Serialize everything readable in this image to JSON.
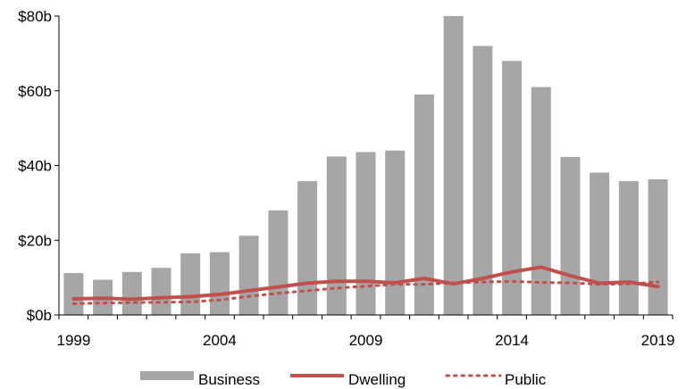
{
  "chart_data": {
    "type": "bar",
    "x": [
      1999,
      2000,
      2001,
      2002,
      2003,
      2004,
      2005,
      2006,
      2007,
      2008,
      2009,
      2010,
      2011,
      2012,
      2013,
      2014,
      2015,
      2016,
      2017,
      2018,
      2019
    ],
    "x_tick_labels": [
      "1999",
      "2004",
      "2009",
      "2014",
      "2019"
    ],
    "y_tick_labels": [
      "$0b",
      "$20b",
      "$40b",
      "$60b",
      "$80b"
    ],
    "ylim": [
      0,
      80
    ],
    "series": [
      {
        "name": "Business",
        "kind": "bar",
        "color": "#a6a6a6",
        "values": [
          11.2,
          9.4,
          11.5,
          12.6,
          16.5,
          16.8,
          21.2,
          28.0,
          35.8,
          42.4,
          43.6,
          44.0,
          59.0,
          80.0,
          72.0,
          68.0,
          61.0,
          42.3,
          38.1,
          35.8,
          36.3
        ]
      },
      {
        "name": "Dwelling",
        "kind": "line",
        "style": "solid",
        "color": "#c0504d",
        "values": [
          4.3,
          4.5,
          4.2,
          4.6,
          4.9,
          5.5,
          6.5,
          7.5,
          8.5,
          9.0,
          9.0,
          8.6,
          9.8,
          8.3,
          9.8,
          11.5,
          12.8,
          10.5,
          8.5,
          8.8,
          7.6
        ]
      },
      {
        "name": "Public",
        "kind": "line",
        "style": "dotted",
        "color": "#c0504d",
        "values": [
          3.0,
          3.2,
          3.3,
          3.4,
          3.5,
          4.0,
          5.0,
          5.8,
          6.5,
          7.2,
          7.7,
          8.2,
          8.2,
          8.6,
          8.8,
          9.0,
          8.7,
          8.6,
          8.2,
          8.3,
          8.8
        ]
      }
    ],
    "legend_position": "bottom",
    "grid": false
  }
}
